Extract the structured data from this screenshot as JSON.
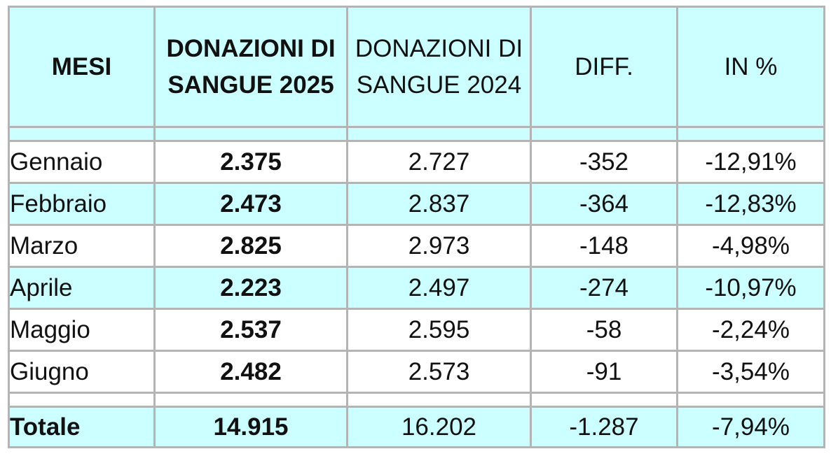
{
  "headers": {
    "months": "MESI",
    "donations_2025_line1": "DONAZIONI DI",
    "donations_2025_line2": "SANGUE 2025",
    "donations_2024_line1": "DONAZIONI DI",
    "donations_2024_line2": "SANGUE 2024",
    "diff": "DIFF.",
    "percent": "IN %"
  },
  "rows": [
    {
      "month": "Gennaio",
      "d2025": "2.375",
      "d2024": "2.727",
      "diff": "-352",
      "pct": "-12,91%"
    },
    {
      "month": "Febbraio",
      "d2025": "2.473",
      "d2024": "2.837",
      "diff": "-364",
      "pct": "-12,83%"
    },
    {
      "month": "Marzo",
      "d2025": "2.825",
      "d2024": "2.973",
      "diff": "-148",
      "pct": "-4,98%"
    },
    {
      "month": "Aprile",
      "d2025": "2.223",
      "d2024": "2.497",
      "diff": "-274",
      "pct": "-10,97%"
    },
    {
      "month": "Maggio",
      "d2025": "2.537",
      "d2024": "2.595",
      "diff": "-58",
      "pct": "-2,24%"
    },
    {
      "month": "Giugno",
      "d2025": "2.482",
      "d2024": "2.573",
      "diff": "-91",
      "pct": "-3,54%"
    }
  ],
  "total": {
    "label": "Totale",
    "d2025": "14.915",
    "d2024": "16.202",
    "diff": "-1.287",
    "pct": "-7,94%"
  },
  "colors": {
    "band": "#ccffff",
    "border": "#b4b4b4"
  }
}
